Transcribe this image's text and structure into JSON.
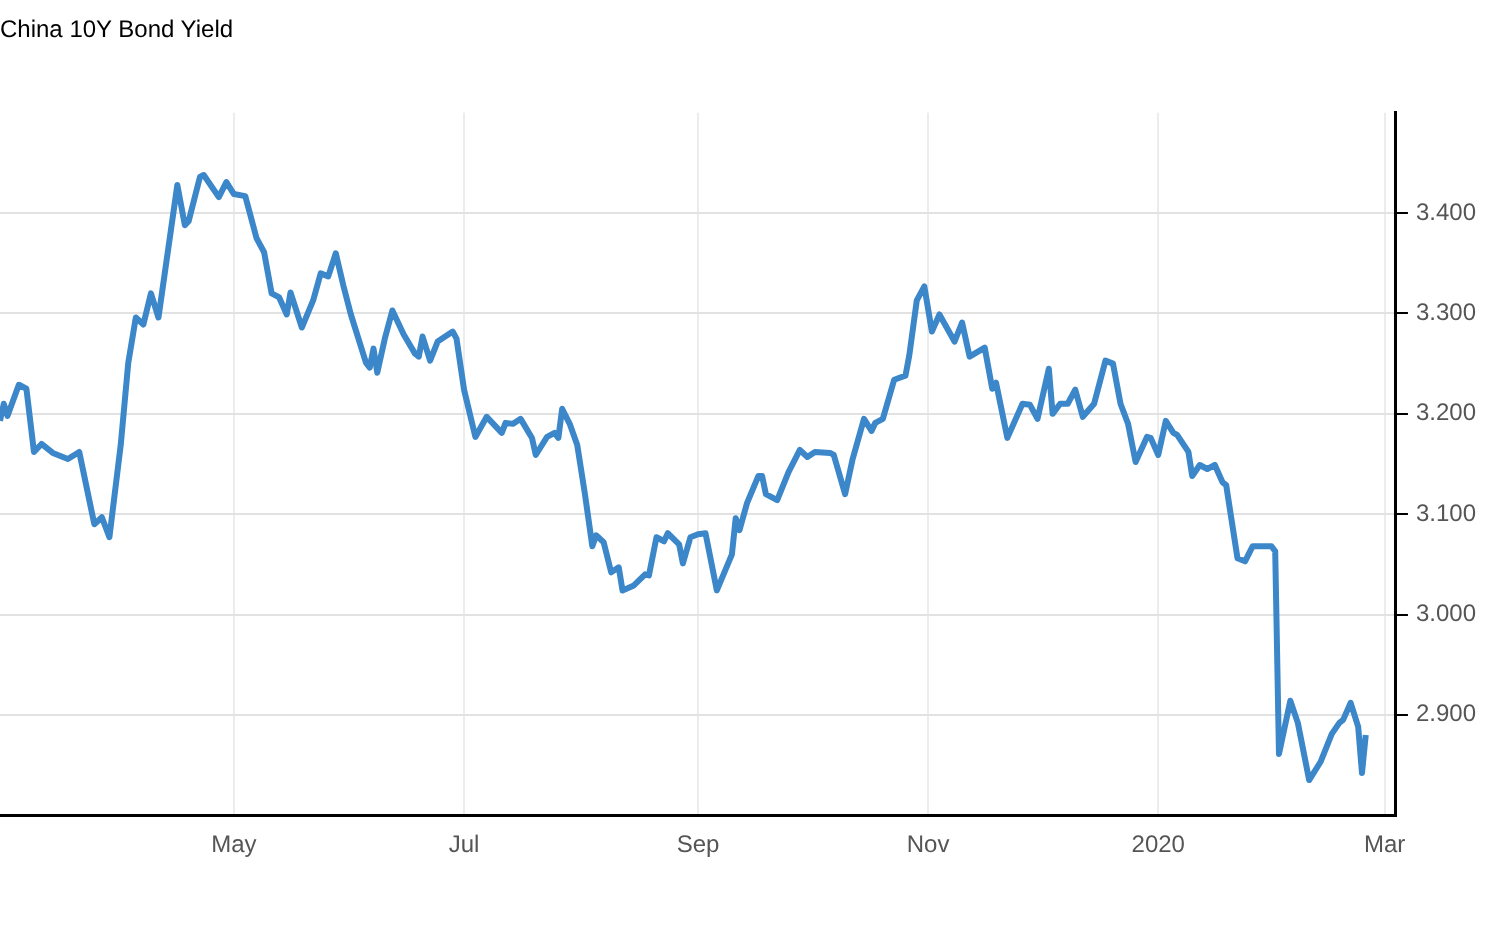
{
  "chart_data": {
    "type": "line",
    "title": "China 10Y Bond Yield",
    "x": [
      "2019-02-28",
      "2019-03-01",
      "2019-03-02",
      "2019-03-05",
      "2019-03-07",
      "2019-03-09",
      "2019-03-11",
      "2019-03-14",
      "2019-03-18",
      "2019-03-21",
      "2019-03-25",
      "2019-03-27",
      "2019-03-29",
      "2019-04-01",
      "2019-04-03",
      "2019-04-05",
      "2019-04-07",
      "2019-04-09",
      "2019-04-11",
      "2019-04-16",
      "2019-04-18",
      "2019-04-19",
      "2019-04-22",
      "2019-04-23",
      "2019-04-27",
      "2019-04-29",
      "2019-05-01",
      "2019-05-04",
      "2019-05-07",
      "2019-05-09",
      "2019-05-11",
      "2019-05-13",
      "2019-05-15",
      "2019-05-16",
      "2019-05-19",
      "2019-05-22",
      "2019-05-24",
      "2019-05-26",
      "2019-05-28",
      "2019-05-30",
      "2019-06-01",
      "2019-06-05",
      "2019-06-06",
      "2019-06-07",
      "2019-06-08",
      "2019-06-10",
      "2019-06-12",
      "2019-06-15",
      "2019-06-18",
      "2019-06-19",
      "2019-06-20",
      "2019-06-22",
      "2019-06-24",
      "2019-06-28",
      "2019-06-29",
      "2019-07-01",
      "2019-07-04",
      "2019-07-07",
      "2019-07-11",
      "2019-07-12",
      "2019-07-14",
      "2019-07-16",
      "2019-07-19",
      "2019-07-20",
      "2019-07-23",
      "2019-07-25",
      "2019-07-26",
      "2019-07-27",
      "2019-07-29",
      "2019-07-31",
      "2019-08-02",
      "2019-08-04",
      "2019-08-05",
      "2019-08-07",
      "2019-08-09",
      "2019-08-11",
      "2019-08-12",
      "2019-08-15",
      "2019-08-18",
      "2019-08-19",
      "2019-08-21",
      "2019-08-23",
      "2019-08-24",
      "2019-08-27",
      "2019-08-28",
      "2019-08-30",
      "2019-09-01",
      "2019-09-03",
      "2019-09-06",
      "2019-09-10",
      "2019-09-11",
      "2019-09-12",
      "2019-09-14",
      "2019-09-17",
      "2019-09-18",
      "2019-09-19",
      "2019-09-22",
      "2019-09-25",
      "2019-09-28",
      "2019-09-30",
      "2019-10-02",
      "2019-10-06",
      "2019-10-07",
      "2019-10-10",
      "2019-10-12",
      "2019-10-15",
      "2019-10-17",
      "2019-10-18",
      "2019-10-20",
      "2019-10-23",
      "2019-10-26",
      "2019-10-27",
      "2019-10-29",
      "2019-10-31",
      "2019-11-02",
      "2019-11-04",
      "2019-11-08",
      "2019-11-10",
      "2019-11-12",
      "2019-11-16",
      "2019-11-18",
      "2019-11-19",
      "2019-11-22",
      "2019-11-26",
      "2019-11-28",
      "2019-11-30",
      "2019-12-03",
      "2019-12-04",
      "2019-12-06",
      "2019-12-08",
      "2019-12-10",
      "2019-12-12",
      "2019-12-15",
      "2019-12-18",
      "2019-12-20",
      "2019-12-22",
      "2019-12-24",
      "2019-12-26",
      "2019-12-29",
      "2019-12-30",
      "2020-01-01",
      "2020-01-03",
      "2020-01-05",
      "2020-01-06",
      "2020-01-09",
      "2020-01-10",
      "2020-01-12",
      "2020-01-14",
      "2020-01-16",
      "2020-01-18",
      "2020-01-19",
      "2020-01-22",
      "2020-01-24",
      "2020-01-26",
      "2020-01-31",
      "2020-02-01",
      "2020-02-02",
      "2020-02-05",
      "2020-02-07",
      "2020-02-10",
      "2020-02-13",
      "2020-02-16",
      "2020-02-18",
      "2020-02-19",
      "2020-02-21",
      "2020-02-23",
      "2020-02-24",
      "2020-02-25"
    ],
    "series": [
      {
        "color": "#3b87c9",
        "values": [
          3.193,
          3.21,
          3.198,
          3.229,
          3.225,
          3.162,
          3.17,
          3.161,
          3.155,
          3.162,
          3.09,
          3.097,
          3.077,
          3.169,
          3.251,
          3.296,
          3.289,
          3.32,
          3.296,
          3.428,
          3.388,
          3.392,
          3.436,
          3.438,
          3.416,
          3.431,
          3.419,
          3.417,
          3.375,
          3.361,
          3.32,
          3.316,
          3.299,
          3.321,
          3.286,
          3.313,
          3.34,
          3.337,
          3.36,
          3.328,
          3.299,
          3.251,
          3.246,
          3.265,
          3.241,
          3.275,
          3.303,
          3.279,
          3.26,
          3.257,
          3.277,
          3.253,
          3.272,
          3.282,
          3.275,
          3.224,
          3.177,
          3.197,
          3.181,
          3.191,
          3.19,
          3.195,
          3.176,
          3.159,
          3.177,
          3.181,
          3.176,
          3.205,
          3.19,
          3.169,
          3.121,
          3.068,
          3.079,
          3.072,
          3.042,
          3.047,
          3.024,
          3.029,
          3.04,
          3.039,
          3.077,
          3.073,
          3.081,
          3.07,
          3.051,
          3.077,
          3.08,
          3.081,
          3.024,
          3.06,
          3.096,
          3.084,
          3.111,
          3.138,
          3.138,
          3.12,
          3.114,
          3.142,
          3.164,
          3.157,
          3.162,
          3.161,
          3.159,
          3.12,
          3.155,
          3.195,
          3.183,
          3.191,
          3.195,
          3.234,
          3.238,
          3.258,
          3.313,
          3.327,
          3.282,
          3.299,
          3.272,
          3.291,
          3.257,
          3.266,
          3.225,
          3.231,
          3.176,
          3.21,
          3.209,
          3.195,
          3.245,
          3.2,
          3.21,
          3.21,
          3.224,
          3.197,
          3.21,
          3.253,
          3.25,
          3.21,
          3.19,
          3.152,
          3.177,
          3.176,
          3.159,
          3.193,
          3.181,
          3.179,
          3.162,
          3.138,
          3.149,
          3.145,
          3.149,
          3.132,
          3.129,
          3.056,
          3.053,
          3.068,
          3.068,
          3.063,
          2.861,
          2.914,
          2.892,
          2.835,
          2.853,
          2.881,
          2.892,
          2.895,
          2.912,
          2.888,
          2.842,
          2.88
        ]
      }
    ],
    "xlim": [
      "2019-02-28",
      "2020-03-04"
    ],
    "xticks": [
      {
        "value": "2019-05-01",
        "label": "May"
      },
      {
        "value": "2019-07-01",
        "label": "Jul"
      },
      {
        "value": "2019-09-01",
        "label": "Sep"
      },
      {
        "value": "2019-11-01",
        "label": "Nov"
      },
      {
        "value": "2020-01-01",
        "label": "2020"
      },
      {
        "value": "2020-03-01",
        "label": "Mar"
      }
    ],
    "ylim": [
      2.8,
      3.5
    ],
    "yticks": [
      {
        "value": 2.9,
        "label": "2.900"
      },
      {
        "value": 3.0,
        "label": "3.000"
      },
      {
        "value": 3.1,
        "label": "3.100"
      },
      {
        "value": 3.2,
        "label": "3.200"
      },
      {
        "value": 3.3,
        "label": "3.300"
      },
      {
        "value": 3.4,
        "label": "3.400"
      }
    ],
    "grid": true,
    "legend": false,
    "marker": "none",
    "line_style": "solid"
  }
}
